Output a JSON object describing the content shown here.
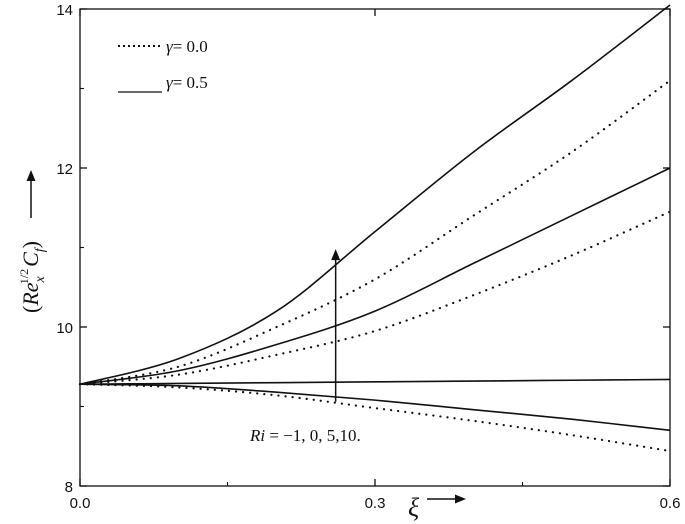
{
  "chart_data": {
    "type": "line",
    "xlabel": "ξ",
    "ylabel": {
      "open": "(",
      "base": "Re",
      "sub_x": "x",
      "sup": "1/2",
      "c": "C",
      "sub_f": "f",
      "close": ")"
    },
    "xlim": [
      0,
      0.6
    ],
    "ylim": [
      8,
      14
    ],
    "x_ticks": [
      "0.0",
      "0.3",
      "0.6"
    ],
    "y_ticks": [
      "8",
      "10",
      "12",
      "14"
    ],
    "grid": false,
    "legend": {
      "position": "top-left",
      "entries": [
        {
          "symbol": "γ",
          "eq": "= 0.0",
          "style": "dotted"
        },
        {
          "symbol": "γ",
          "eq": "= 0.5",
          "style": "solid"
        }
      ]
    },
    "annotation": {
      "prefix": "Ri",
      "text": " = −1,  0,  5,10."
    },
    "series": [
      {
        "gamma": 0.5,
        "style": "solid",
        "x": [
          0,
          0.1,
          0.2,
          0.3,
          0.4,
          0.5,
          0.6
        ],
        "y": [
          9.28,
          9.6,
          10.2,
          11.2,
          12.2,
          13.1,
          14.05
        ]
      },
      {
        "gamma": 0.0,
        "style": "dotted",
        "x": [
          0,
          0.1,
          0.2,
          0.3,
          0.4,
          0.5,
          0.6
        ],
        "y": [
          9.28,
          9.5,
          10.0,
          10.6,
          11.4,
          12.2,
          13.1
        ]
      },
      {
        "gamma": 0.5,
        "style": "solid",
        "x": [
          0,
          0.1,
          0.2,
          0.3,
          0.4,
          0.5,
          0.6
        ],
        "y": [
          9.28,
          9.45,
          9.78,
          10.2,
          10.8,
          11.4,
          12.0
        ]
      },
      {
        "gamma": 0.0,
        "style": "dotted",
        "x": [
          0,
          0.1,
          0.2,
          0.3,
          0.4,
          0.5,
          0.6
        ],
        "y": [
          9.28,
          9.4,
          9.65,
          9.95,
          10.4,
          10.9,
          11.45
        ]
      },
      {
        "gamma": 0.5,
        "style": "solid",
        "x": [
          0,
          0.1,
          0.2,
          0.3,
          0.4,
          0.5,
          0.6
        ],
        "y": [
          9.28,
          9.29,
          9.3,
          9.31,
          9.32,
          9.33,
          9.34
        ]
      },
      {
        "gamma": 0.5,
        "style": "solid",
        "x": [
          0,
          0.1,
          0.2,
          0.3,
          0.4,
          0.5,
          0.6
        ],
        "y": [
          9.28,
          9.26,
          9.18,
          9.08,
          8.96,
          8.84,
          8.7
        ]
      },
      {
        "gamma": 0.0,
        "style": "dotted",
        "x": [
          0,
          0.1,
          0.2,
          0.3,
          0.4,
          0.5,
          0.6
        ],
        "y": [
          9.28,
          9.24,
          9.14,
          8.98,
          8.82,
          8.64,
          8.44
        ]
      }
    ],
    "arrow": {
      "x": 0.26,
      "y_from": 9.06,
      "y_to": 10.98
    }
  }
}
